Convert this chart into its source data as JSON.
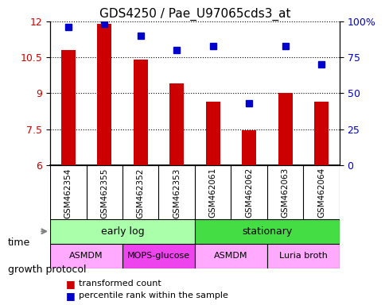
{
  "title": "GDS4250 / Pae_U97065cds3_at",
  "samples": [
    "GSM462354",
    "GSM462355",
    "GSM462352",
    "GSM462353",
    "GSM462061",
    "GSM462062",
    "GSM462063",
    "GSM462064"
  ],
  "transformed_count": [
    10.8,
    11.9,
    10.4,
    9.4,
    8.65,
    7.45,
    9.0,
    8.65
  ],
  "percentile_rank": [
    96,
    98,
    90,
    80,
    83,
    43,
    83,
    70
  ],
  "ylim_left": [
    6,
    12
  ],
  "ylim_right": [
    0,
    100
  ],
  "yticks_left": [
    6,
    7.5,
    9,
    10.5,
    12
  ],
  "yticks_right": [
    0,
    25,
    50,
    75,
    100
  ],
  "bar_color": "#cc0000",
  "dot_color": "#0000cc",
  "bar_bottom": 6,
  "time_groups": [
    {
      "label": "early log",
      "start": 0,
      "end": 4,
      "color": "#aaffaa"
    },
    {
      "label": "stationary",
      "start": 4,
      "end": 8,
      "color": "#44dd44"
    }
  ],
  "protocol_groups": [
    {
      "label": "ASMDM",
      "start": 0,
      "end": 2,
      "color": "#ffaaff"
    },
    {
      "label": "MOPS-glucose",
      "start": 2,
      "end": 4,
      "color": "#ee44ee"
    },
    {
      "label": "ASMDM",
      "start": 4,
      "end": 6,
      "color": "#ffaaff"
    },
    {
      "label": "Luria broth",
      "start": 6,
      "end": 8,
      "color": "#ffaaff"
    }
  ],
  "legend_red": "transformed count",
  "legend_blue": "percentile rank within the sample",
  "time_label": "time",
  "protocol_label": "growth protocol",
  "grid_color": "#000000",
  "background_color": "#ffffff"
}
